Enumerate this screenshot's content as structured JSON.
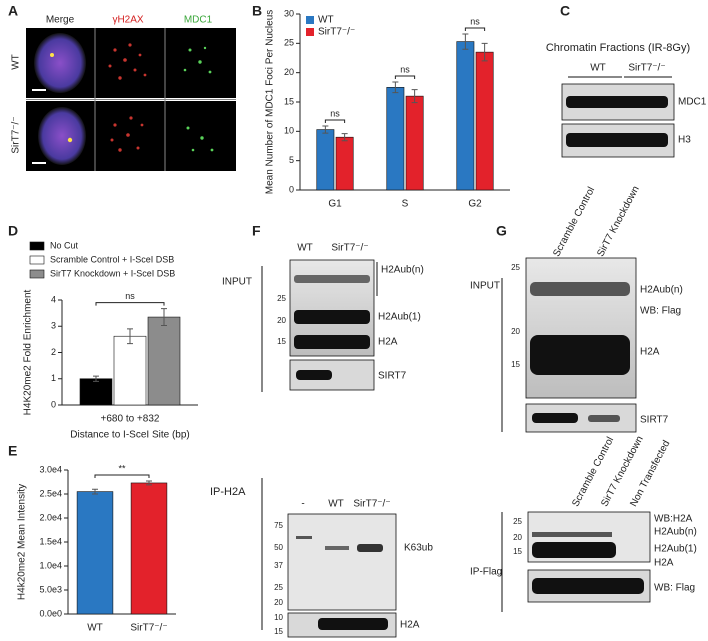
{
  "panel_letters": [
    "A",
    "B",
    "C",
    "D",
    "E",
    "F",
    "G"
  ],
  "panel_a": {
    "columns": [
      "Merge",
      "γH2AX",
      "MDC1"
    ],
    "rows": [
      "WT",
      "SirT7⁻/⁻"
    ]
  },
  "chart_data": [
    {
      "type": "bar",
      "categories": [
        "G1",
        "S",
        "G2"
      ],
      "series": [
        {
          "name": "WT",
          "color": "#2a78c2",
          "values": [
            10.3,
            17.5,
            25.3
          ],
          "errors": [
            0.6,
            0.9,
            1.3
          ]
        },
        {
          "name": "SirT7⁻/⁻",
          "color": "#e3222b",
          "values": [
            9.0,
            16.0,
            23.5
          ],
          "errors": [
            0.6,
            1.1,
            1.5
          ]
        }
      ],
      "ylabel": "Mean Number of MDC1 Foci Per Nucleus",
      "ylim": [
        0,
        30
      ],
      "yticks": [
        0,
        5,
        10,
        15,
        20,
        25,
        30
      ],
      "annotations": [
        "ns",
        "ns",
        "ns"
      ],
      "legend": "upper left"
    },
    {
      "type": "bar",
      "categories": [
        "+680 to +832"
      ],
      "series": [
        {
          "name": "No Cut",
          "color": "#000000",
          "values": [
            1.0
          ],
          "errors": [
            0.1
          ]
        },
        {
          "name": "Scramble Control + I-SceI DSB",
          "color": "#ffffff",
          "values": [
            2.62
          ],
          "errors": [
            0.28
          ]
        },
        {
          "name": "SirT7 Knockdown + I-SceI DSB",
          "color": "#8c8c8c",
          "values": [
            3.35
          ],
          "errors": [
            0.32
          ]
        }
      ],
      "xlabel": "Distance to I-SceI Site (bp)",
      "ylabel": "H4K20me2 Fold Enrichment",
      "ylim": [
        0,
        4
      ],
      "yticks": [
        0,
        1,
        2,
        3,
        4
      ],
      "annotations": [
        "ns"
      ],
      "legend": "top outside"
    },
    {
      "type": "bar",
      "categories": [
        "WT",
        "SirT7⁻/⁻"
      ],
      "series": [
        {
          "colors": [
            "#2a78c2",
            "#e3222b"
          ],
          "values": [
            25500,
            27300
          ],
          "errors": [
            500,
            400
          ]
        }
      ],
      "ylabel": "H4k20me2 Mean Intensity",
      "ylim": [
        0,
        30000
      ],
      "yticks": [
        {
          "value": 0,
          "label": "0.0e0"
        },
        {
          "value": 5000,
          "label": "5.0e3"
        },
        {
          "value": 10000,
          "label": "1.0e4"
        },
        {
          "value": 15000,
          "label": "1.5e4"
        },
        {
          "value": 20000,
          "label": "2.0e4"
        },
        {
          "value": 25000,
          "label": "2.5e4"
        },
        {
          "value": 30000,
          "label": "3.0e4"
        }
      ],
      "annotations": [
        "**"
      ]
    }
  ],
  "panel_c": {
    "title": "Chromatin Fractions (IR-8Gy)",
    "lanes": [
      "WT",
      "SirT7⁻/⁻"
    ],
    "bands": [
      "MDC1",
      "H3"
    ]
  },
  "panel_f": {
    "input_label": "INPUT",
    "input_lanes": [
      "WT",
      "SirT7⁻/⁻"
    ],
    "input_markers": [
      "25",
      "20",
      "15"
    ],
    "input_bands": [
      "H2Aub(n)",
      "H2Aub(1)",
      "H2A",
      "SIRT7"
    ],
    "ip_label": "IP-H2A",
    "ip_lanes": [
      "-",
      "WT",
      "SirT7⁻/⁻"
    ],
    "ip_markers": [
      "75",
      "50",
      "37",
      "25",
      "20",
      "10",
      "15"
    ],
    "ip_bands": [
      "K63ub",
      "H2A"
    ]
  },
  "panel_g": {
    "input_lanes": [
      "Scramble Control",
      "SirT7 Knockdown"
    ],
    "input_label": "INPUT",
    "input_markers": [
      "25",
      "20",
      "15"
    ],
    "input_bands": [
      "H2Aub(n)",
      "WB: Flag",
      "H2A",
      "SIRT7"
    ],
    "ip_lanes": [
      "Scramble Control",
      "SirT7 Knockdown",
      "Non Transfected"
    ],
    "ip_label": "IP-Flag",
    "ip_markers": [
      "25",
      "20",
      "15"
    ],
    "ip_bands": [
      "WB:H2A",
      "H2Aub(n)",
      "H2Aub(1)",
      "H2A",
      "WB: Flag"
    ]
  }
}
